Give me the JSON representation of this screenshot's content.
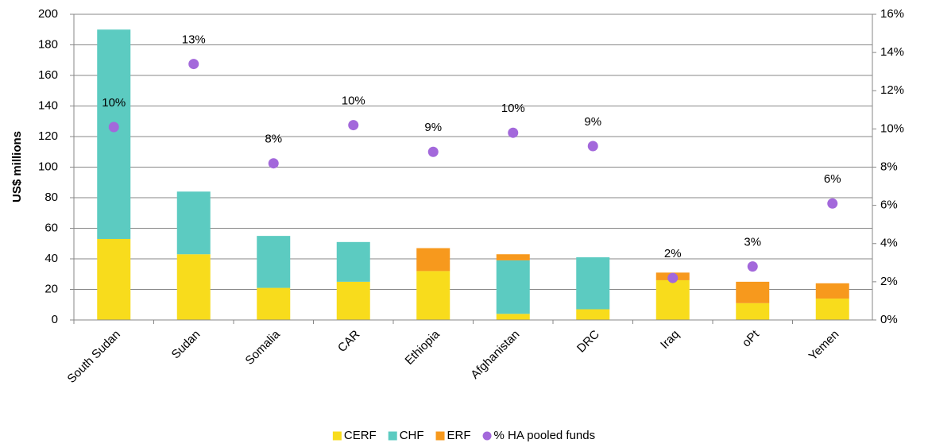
{
  "chart_data": {
    "type": "bar",
    "stacked": true,
    "y_label": "US$ millions",
    "categories": [
      "South Sudan",
      "Sudan",
      "Somalia",
      "CAR",
      "Ethiopia",
      "Afghanistan",
      "DRC",
      "Iraq",
      "oPt",
      "Yemen"
    ],
    "series": [
      {
        "name": "CERF",
        "color": "#f8dc1c",
        "values": [
          53,
          43,
          21,
          25,
          32,
          4,
          7,
          26,
          11,
          14
        ]
      },
      {
        "name": "CHF",
        "color": "#5ccbc1",
        "values": [
          137,
          41,
          34,
          26,
          0,
          35,
          34,
          0,
          0,
          0
        ]
      },
      {
        "name": "ERF",
        "color": "#f7991d",
        "values": [
          0,
          0,
          0,
          0,
          15,
          4,
          0,
          5,
          14,
          10
        ]
      },
      {
        "name": "% HA pooled funds",
        "type": "scatter",
        "axis": "y2",
        "color": "#a368db",
        "values": [
          10.1,
          13.4,
          8.2,
          10.2,
          8.8,
          9.8,
          9.1,
          2.2,
          2.8,
          6.1
        ],
        "value_labels": [
          "10%",
          "13%",
          "8%",
          "10%",
          "9%",
          "10%",
          "9%",
          "2%",
          "3%",
          "6%"
        ]
      }
    ],
    "ylim": [
      0,
      200
    ],
    "yticks": [
      0,
      20,
      40,
      60,
      80,
      100,
      120,
      140,
      160,
      180,
      200
    ],
    "y2lim": [
      0,
      16
    ],
    "y2ticks": [
      {
        "value": 0,
        "label": "0%"
      },
      {
        "value": 2,
        "label": "2%"
      },
      {
        "value": 4,
        "label": "4%"
      },
      {
        "value": 6,
        "label": "6%"
      },
      {
        "value": 8,
        "label": "8%"
      },
      {
        "value": 10,
        "label": "10%"
      },
      {
        "value": 12,
        "label": "12%"
      },
      {
        "value": 14,
        "label": "14%"
      },
      {
        "value": 16,
        "label": "16%"
      }
    ],
    "grid": true,
    "legend": "bottom"
  }
}
